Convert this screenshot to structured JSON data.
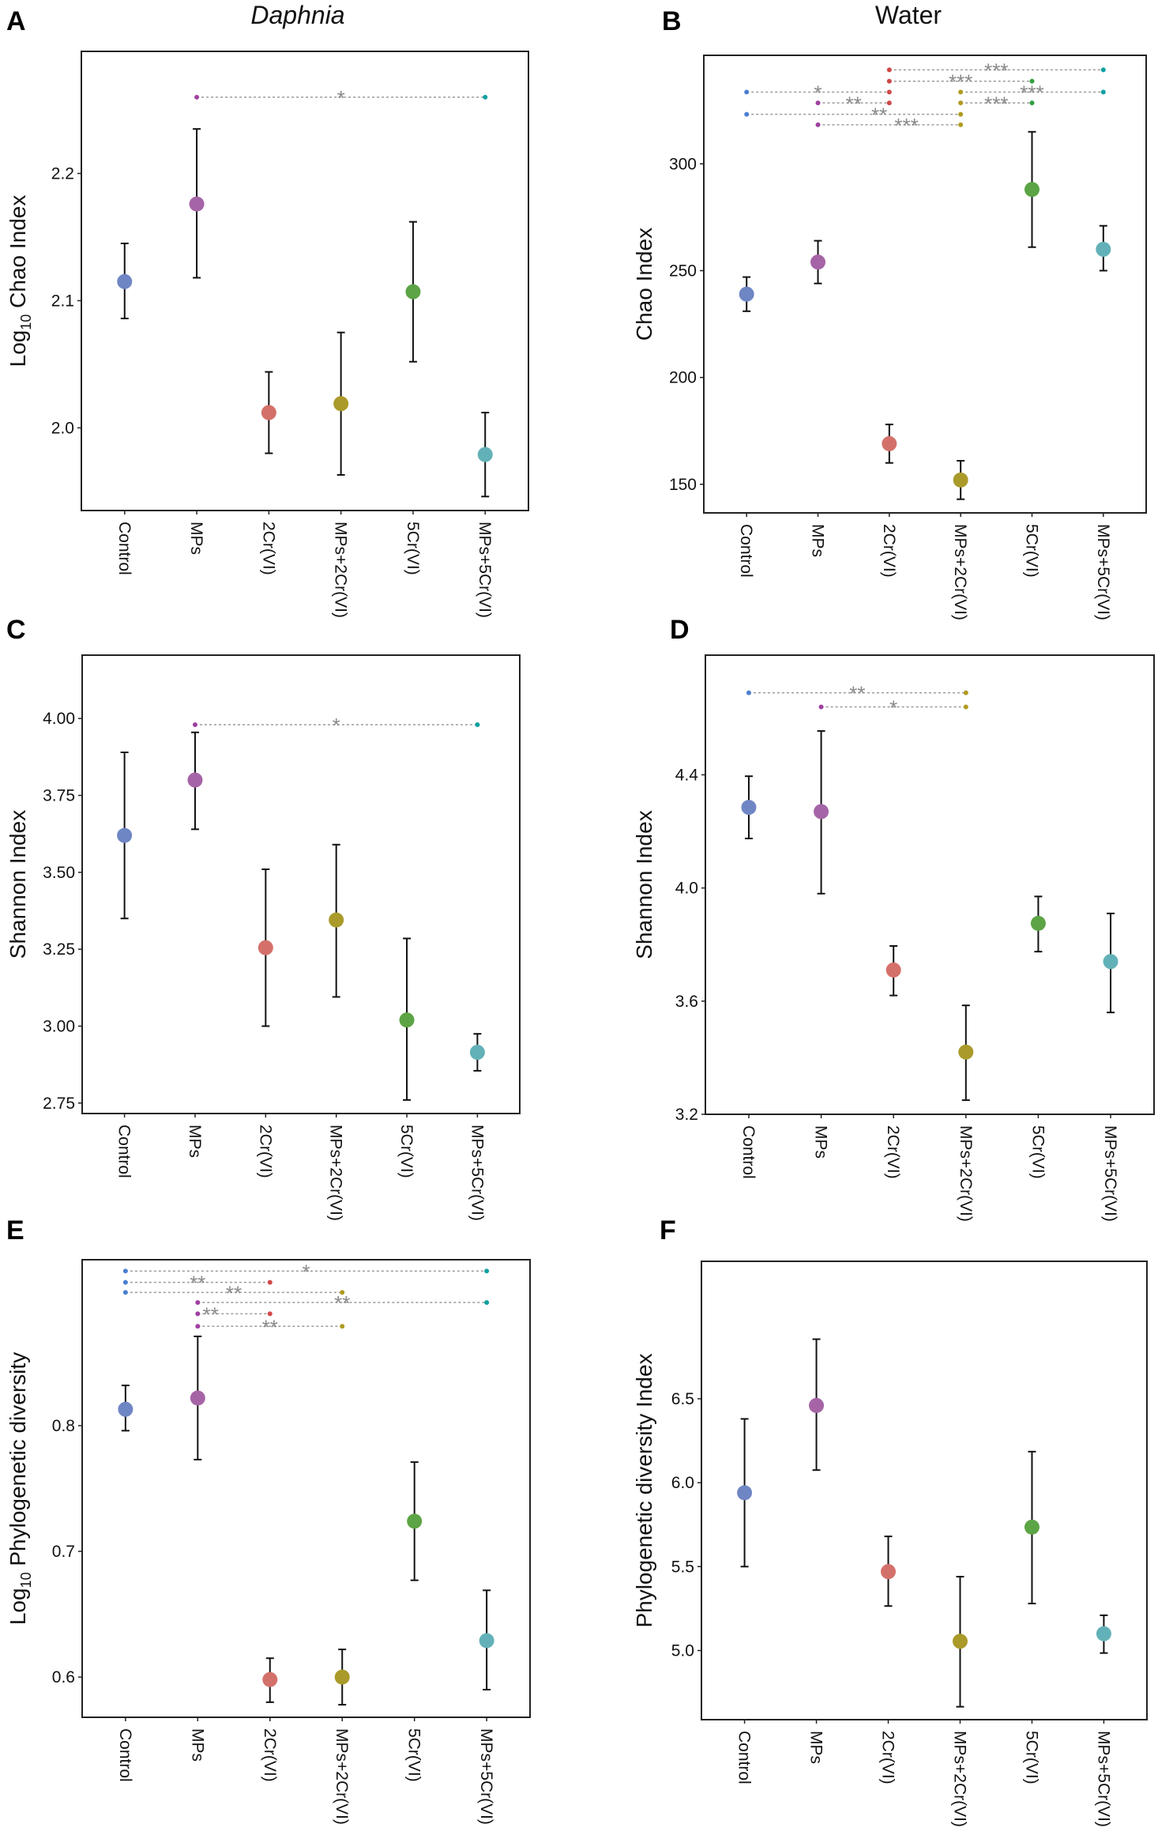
{
  "titles": {
    "daphnia": "Daphnia",
    "water": "Water"
  },
  "colors": {
    "groups": [
      "#6f86c4",
      "#a564a6",
      "#d4706a",
      "#aa9a2a",
      "#5ca445",
      "#63b1b8"
    ],
    "sig_dots": [
      "#4a7fd0",
      "#a040a0",
      "#d04848",
      "#b09a20",
      "#30a040",
      "#10a0a0"
    ]
  },
  "chart_data": [
    {
      "panel": "A",
      "type": "scatter",
      "ylabel_prefix": "Log",
      "ylabel_sub": "10",
      "ylabel_rest": " Chao Index",
      "categories": [
        "Control",
        "MPs",
        "2Cr(VI)",
        "MPs+2Cr(VI)",
        "5Cr(VI)",
        "MPs+5Cr(VI)"
      ],
      "ylim": [
        1.935,
        2.296
      ],
      "yticks": [
        "2.0",
        "2.1",
        "2.2"
      ],
      "values": [
        2.115,
        2.176,
        2.012,
        2.019,
        2.107,
        1.979
      ],
      "lower": [
        2.086,
        2.118,
        1.98,
        1.963,
        2.052,
        1.946
      ],
      "upper": [
        2.145,
        2.235,
        2.044,
        2.075,
        2.162,
        2.012
      ],
      "significance": [
        {
          "from": 1,
          "to": 5,
          "y": 2.26,
          "label": "*"
        }
      ]
    },
    {
      "panel": "B",
      "type": "scatter",
      "ylabel_prefix": "",
      "ylabel_sub": "",
      "ylabel_rest": "Chao Index",
      "categories": [
        "Control",
        "MPs",
        "2Cr(VI)",
        "MPs+2Cr(VI)",
        "5Cr(VI)",
        "MPs+5Cr(VI)"
      ],
      "ylim": [
        136.6,
        350.8
      ],
      "yticks": [
        "150",
        "200",
        "250",
        "300"
      ],
      "values": [
        239,
        254,
        169,
        152,
        288,
        260
      ],
      "lower": [
        231,
        244,
        160,
        143,
        261,
        250
      ],
      "upper": [
        247,
        264,
        178,
        161,
        315,
        271
      ],
      "significance": [
        {
          "from": 2,
          "to": 5,
          "y": 344.0,
          "label": "***"
        },
        {
          "from": 2,
          "to": 4,
          "y": 338.7,
          "label": "***"
        },
        {
          "from": 0,
          "to": 2,
          "y": 333.6,
          "label": "*"
        },
        {
          "from": 3,
          "to": 5,
          "y": 333.6,
          "label": "***"
        },
        {
          "from": 1,
          "to": 2,
          "y": 328.5,
          "label": "**"
        },
        {
          "from": 3,
          "to": 4,
          "y": 328.5,
          "label": "***"
        },
        {
          "from": 0,
          "to": 3,
          "y": 323.2,
          "label": "**"
        },
        {
          "from": 1,
          "to": 3,
          "y": 318.3,
          "label": "***"
        }
      ]
    },
    {
      "panel": "C",
      "type": "scatter",
      "ylabel_prefix": "",
      "ylabel_sub": "",
      "ylabel_rest": "Shannon Index",
      "categories": [
        "Control",
        "MPs",
        "2Cr(VI)",
        "MPs+2Cr(VI)",
        "5Cr(VI)",
        "MPs+5Cr(VI)"
      ],
      "ylim": [
        2.716,
        4.206
      ],
      "yticks": [
        "2.75",
        "3.00",
        "3.25",
        "3.50",
        "3.75",
        "4.00"
      ],
      "values": [
        3.62,
        3.8,
        3.255,
        3.345,
        3.02,
        2.915
      ],
      "lower": [
        3.35,
        3.64,
        3.0,
        3.095,
        2.76,
        2.855
      ],
      "upper": [
        3.89,
        3.955,
        3.51,
        3.59,
        3.285,
        2.975
      ],
      "significance": [
        {
          "from": 1,
          "to": 5,
          "y": 3.98,
          "label": "*"
        }
      ]
    },
    {
      "panel": "D",
      "type": "scatter",
      "ylabel_prefix": "",
      "ylabel_sub": "",
      "ylabel_rest": "Shannon Index",
      "categories": [
        "Control",
        "MPs",
        "2Cr(VI)",
        "MPs+2Cr(VI)",
        "5Cr(VI)",
        "MPs+5Cr(VI)"
      ],
      "ylim": [
        3.2,
        4.823
      ],
      "yticks": [
        "3.2",
        "3.6",
        "4.0",
        "4.4"
      ],
      "values": [
        4.285,
        4.27,
        3.71,
        3.42,
        3.875,
        3.74
      ],
      "lower": [
        4.175,
        3.98,
        3.62,
        3.25,
        3.775,
        3.56
      ],
      "upper": [
        4.395,
        4.555,
        3.795,
        3.585,
        3.97,
        3.91
      ],
      "significance": [
        {
          "from": 0,
          "to": 3,
          "y": 4.69,
          "label": "**"
        },
        {
          "from": 1,
          "to": 3,
          "y": 4.64,
          "label": "*"
        }
      ]
    },
    {
      "panel": "E",
      "type": "scatter",
      "ylabel_prefix": "Log",
      "ylabel_sub": "10",
      "ylabel_rest": " Phylogenetic diversity",
      "categories": [
        "Control",
        "MPs",
        "2Cr(VI)",
        "MPs+2Cr(VI)",
        "5Cr(VI)",
        "MPs+5Cr(VI)"
      ],
      "ylim": [
        0.568,
        0.932
      ],
      "yticks": [
        "0.6",
        "0.7",
        "0.8"
      ],
      "values": [
        0.813,
        0.822,
        0.598,
        0.6,
        0.724,
        0.629
      ],
      "lower": [
        0.796,
        0.773,
        0.58,
        0.578,
        0.677,
        0.59
      ],
      "upper": [
        0.832,
        0.871,
        0.615,
        0.622,
        0.771,
        0.669
      ],
      "significance": [
        {
          "from": 0,
          "to": 5,
          "y": 0.923,
          "label": "*"
        },
        {
          "from": 0,
          "to": 2,
          "y": 0.914,
          "label": "**"
        },
        {
          "from": 0,
          "to": 3,
          "y": 0.906,
          "label": "**"
        },
        {
          "from": 1,
          "to": 5,
          "y": 0.898,
          "label": "**"
        },
        {
          "from": 1,
          "to": 2,
          "y": 0.889,
          "label": "**"
        },
        {
          "from": 1,
          "to": 3,
          "y": 0.879,
          "label": "**"
        }
      ]
    },
    {
      "panel": "F",
      "type": "scatter",
      "ylabel_prefix": "",
      "ylabel_sub": "",
      "ylabel_rest": "Phylogenetic diversity Index",
      "categories": [
        "Control",
        "MPs",
        "2Cr(VI)",
        "MPs+2Cr(VI)",
        "5Cr(VI)",
        "MPs+5Cr(VI)"
      ],
      "ylim": [
        4.588,
        7.319
      ],
      "yticks": [
        "5.0",
        "5.5",
        "6.0",
        "6.5"
      ],
      "values": [
        5.94,
        6.46,
        5.47,
        5.055,
        5.735,
        5.1
      ],
      "lower": [
        5.5,
        6.075,
        5.265,
        4.665,
        5.28,
        4.985
      ],
      "upper": [
        6.38,
        6.855,
        5.68,
        5.44,
        6.185,
        5.21
      ],
      "significance": []
    }
  ]
}
